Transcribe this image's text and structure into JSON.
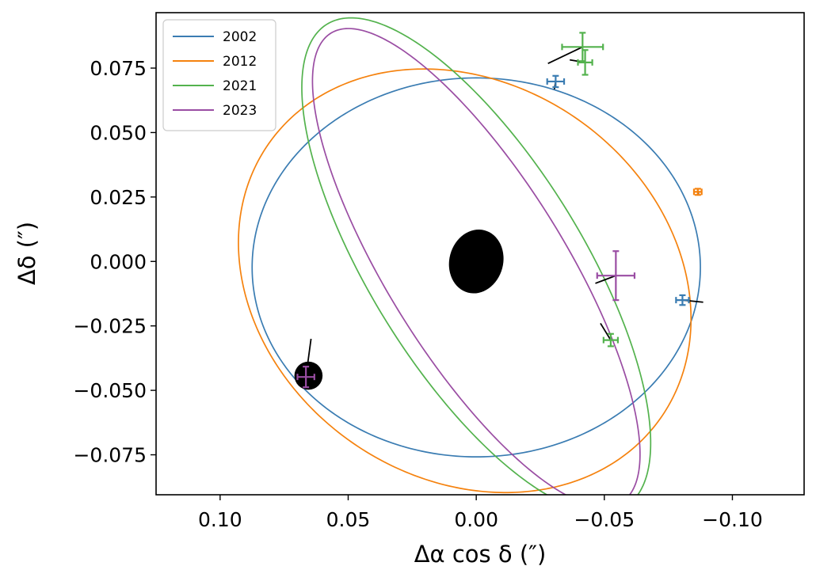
{
  "chart_data": {
    "type": "scatter",
    "title": "",
    "xlabel": "Δα cos δ (″)",
    "ylabel": "Δδ (″)",
    "xlim": [
      0.125,
      -0.128
    ],
    "ylim": [
      -0.0905,
      0.0965
    ],
    "x_inverted": true,
    "grid": false,
    "legend_position": "top-left",
    "x_ticks": [
      0.1,
      0.05,
      0.0,
      -0.05,
      -0.1
    ],
    "x_tick_labels": [
      "0.10",
      "0.05",
      "0.00",
      "−0.05",
      "−0.10"
    ],
    "y_ticks": [
      -0.075,
      -0.05,
      -0.025,
      0.0,
      0.025,
      0.05,
      0.075
    ],
    "y_tick_labels": [
      "−0.075",
      "−0.050",
      "−0.025",
      "0.000",
      "0.025",
      "0.050",
      "0.075"
    ],
    "primary": {
      "x": 0.0,
      "y": 0.0,
      "rx": 0.0105,
      "ry": 0.0125,
      "rotation_deg": 15,
      "color": "#000000"
    },
    "secondary": {
      "x": 0.0655,
      "y": -0.0443,
      "r": 0.0055,
      "color": "#000000"
    },
    "series": [
      {
        "name": "2002",
        "color": "#3a7cb2",
        "orbit": {
          "cx": 0.0,
          "cy": -0.0023,
          "a": 0.0875,
          "b": 0.0735,
          "rotation_deg": 0
        },
        "points": [
          {
            "x": -0.031,
            "y": 0.0698,
            "xerr": 0.0033,
            "yerr": 0.0022
          },
          {
            "x": -0.0805,
            "y": -0.015,
            "xerr": 0.0025,
            "yerr": 0.0019
          }
        ],
        "residual_lines": [
          {
            "x1": -0.031,
            "y1": 0.0698,
            "x2": -0.0305,
            "y2": 0.0668
          },
          {
            "x1": -0.0805,
            "y1": -0.015,
            "x2": -0.0886,
            "y2": -0.0158
          }
        ]
      },
      {
        "name": "2012",
        "color": "#f5820e",
        "orbit": {
          "cx": 0.0045,
          "cy": -0.0075,
          "a": 0.0932,
          "b": 0.0766,
          "rotation_deg": 34
        },
        "points": [
          {
            "x": -0.0865,
            "y": 0.027,
            "xerr": 0.0015,
            "yerr": 0.0012
          }
        ],
        "residual_lines": [
          {
            "x1": -0.0865,
            "y1": 0.027,
            "x2": -0.0868,
            "y2": 0.0262
          }
        ]
      },
      {
        "name": "2021",
        "color": "#53b24d",
        "orbit": {
          "cx": 0.0,
          "cy": -0.0015,
          "a": 0.1102,
          "b": 0.0413,
          "rotation_deg": 58
        },
        "points": [
          {
            "x": -0.0415,
            "y": 0.0832,
            "xerr": 0.008,
            "yerr": 0.0055
          },
          {
            "x": -0.0425,
            "y": 0.0772,
            "xerr": 0.0028,
            "yerr": 0.0048
          },
          {
            "x": -0.0525,
            "y": -0.0305,
            "xerr": 0.0028,
            "yerr": 0.0024
          }
        ],
        "residual_lines": [
          {
            "x1": -0.0415,
            "y1": 0.0832,
            "x2": -0.028,
            "y2": 0.0768
          },
          {
            "x1": -0.0425,
            "y1": 0.0772,
            "x2": -0.0365,
            "y2": 0.0782
          },
          {
            "x1": -0.0525,
            "y1": -0.0305,
            "x2": -0.0485,
            "y2": -0.024
          }
        ]
      },
      {
        "name": "2023",
        "color": "#9a4da3",
        "orbit": {
          "cx": 0.0,
          "cy": -0.0024,
          "a": 0.1072,
          "b": 0.0346,
          "rotation_deg": 58
        },
        "points": [
          {
            "x": -0.0545,
            "y": -0.0055,
            "xerr": 0.0073,
            "yerr": 0.0095
          },
          {
            "x": 0.0665,
            "y": -0.0448,
            "xerr": 0.0033,
            "yerr": 0.004
          }
        ],
        "residual_lines": [
          {
            "x1": -0.0545,
            "y1": -0.0055,
            "x2": -0.0465,
            "y2": -0.0085
          },
          {
            "x1": 0.0665,
            "y1": -0.0448,
            "x2": 0.0645,
            "y2": -0.03
          }
        ]
      }
    ]
  }
}
